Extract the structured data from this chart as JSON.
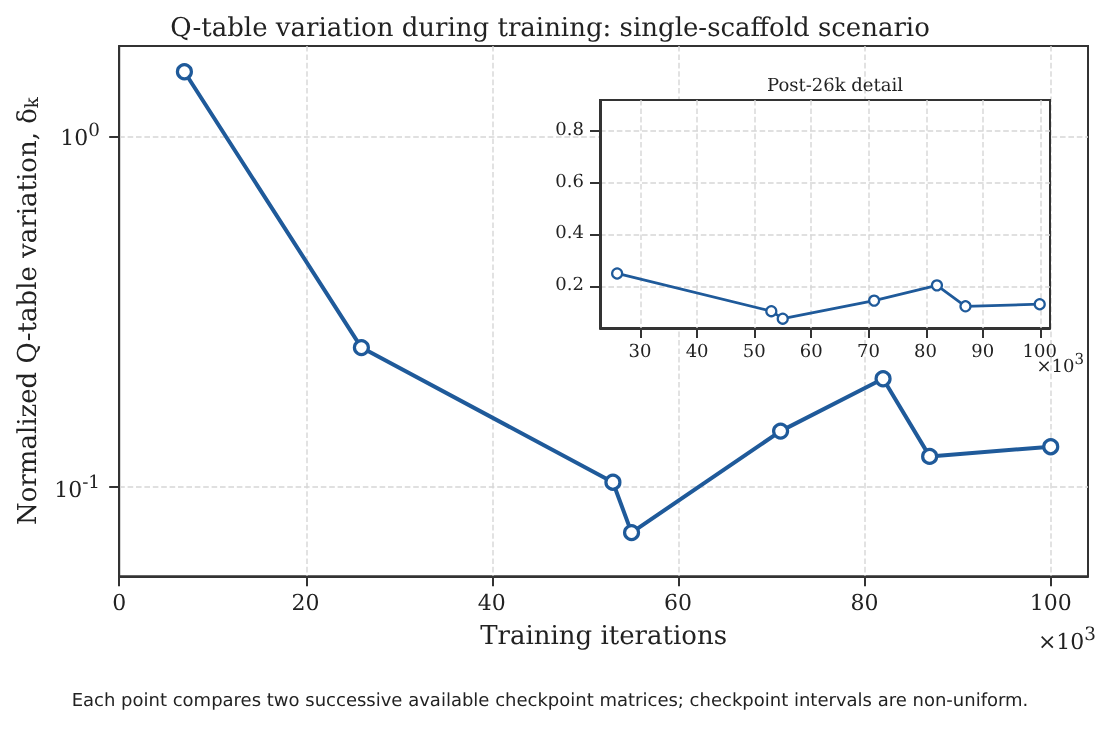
{
  "chart_data": [
    {
      "type": "line",
      "title": "Q-table variation during training: single-scaffold scenario",
      "xlabel": "Training iterations",
      "ylabel": "Normalized Q-table variation, δ$_{k}$",
      "x": [
        7,
        26,
        53,
        55,
        71,
        82,
        87,
        100
      ],
      "series": [
        {
          "color": "#1f5a9a",
          "values": [
            1.52,
            0.249,
            0.103,
            0.074,
            0.144,
            0.203,
            0.122,
            0.13
          ]
        }
      ],
      "xlim": [
        0,
        104
      ],
      "xticks": [
        0,
        20,
        40,
        60,
        80,
        100
      ],
      "ylim": [
        0.0556,
        1.8
      ],
      "yticks": [
        {
          "value": 0.1,
          "label": "10$^{-1}$"
        },
        {
          "value": 1,
          "label": "10$^{0}$"
        }
      ],
      "log": "y",
      "grid": true,
      "marker": "circle",
      "line_style": "solid",
      "annotations": [
        "×10$^{3}$",
        "Each point compares two successive available checkpoint matrices; checkpoint intervals are non-uniform."
      ]
    },
    {
      "type": "line",
      "title": "Post-26k detail",
      "x": [
        26,
        53,
        55,
        71,
        82,
        87,
        100
      ],
      "series": [
        {
          "color": "#1f5a9a",
          "values": [
            0.249,
            0.103,
            0.074,
            0.144,
            0.203,
            0.122,
            0.13
          ]
        }
      ],
      "xlim": [
        23,
        101.8
      ],
      "xticks": [
        30,
        40,
        50,
        60,
        70,
        80,
        90,
        100
      ],
      "ylim": [
        0.038,
        0.92
      ],
      "yticks": [
        0.2,
        0.4,
        0.6,
        0.8
      ],
      "grid": true,
      "marker": "circle",
      "line_style": "solid",
      "annotations": [
        "×10$^{3}$"
      ]
    }
  ]
}
